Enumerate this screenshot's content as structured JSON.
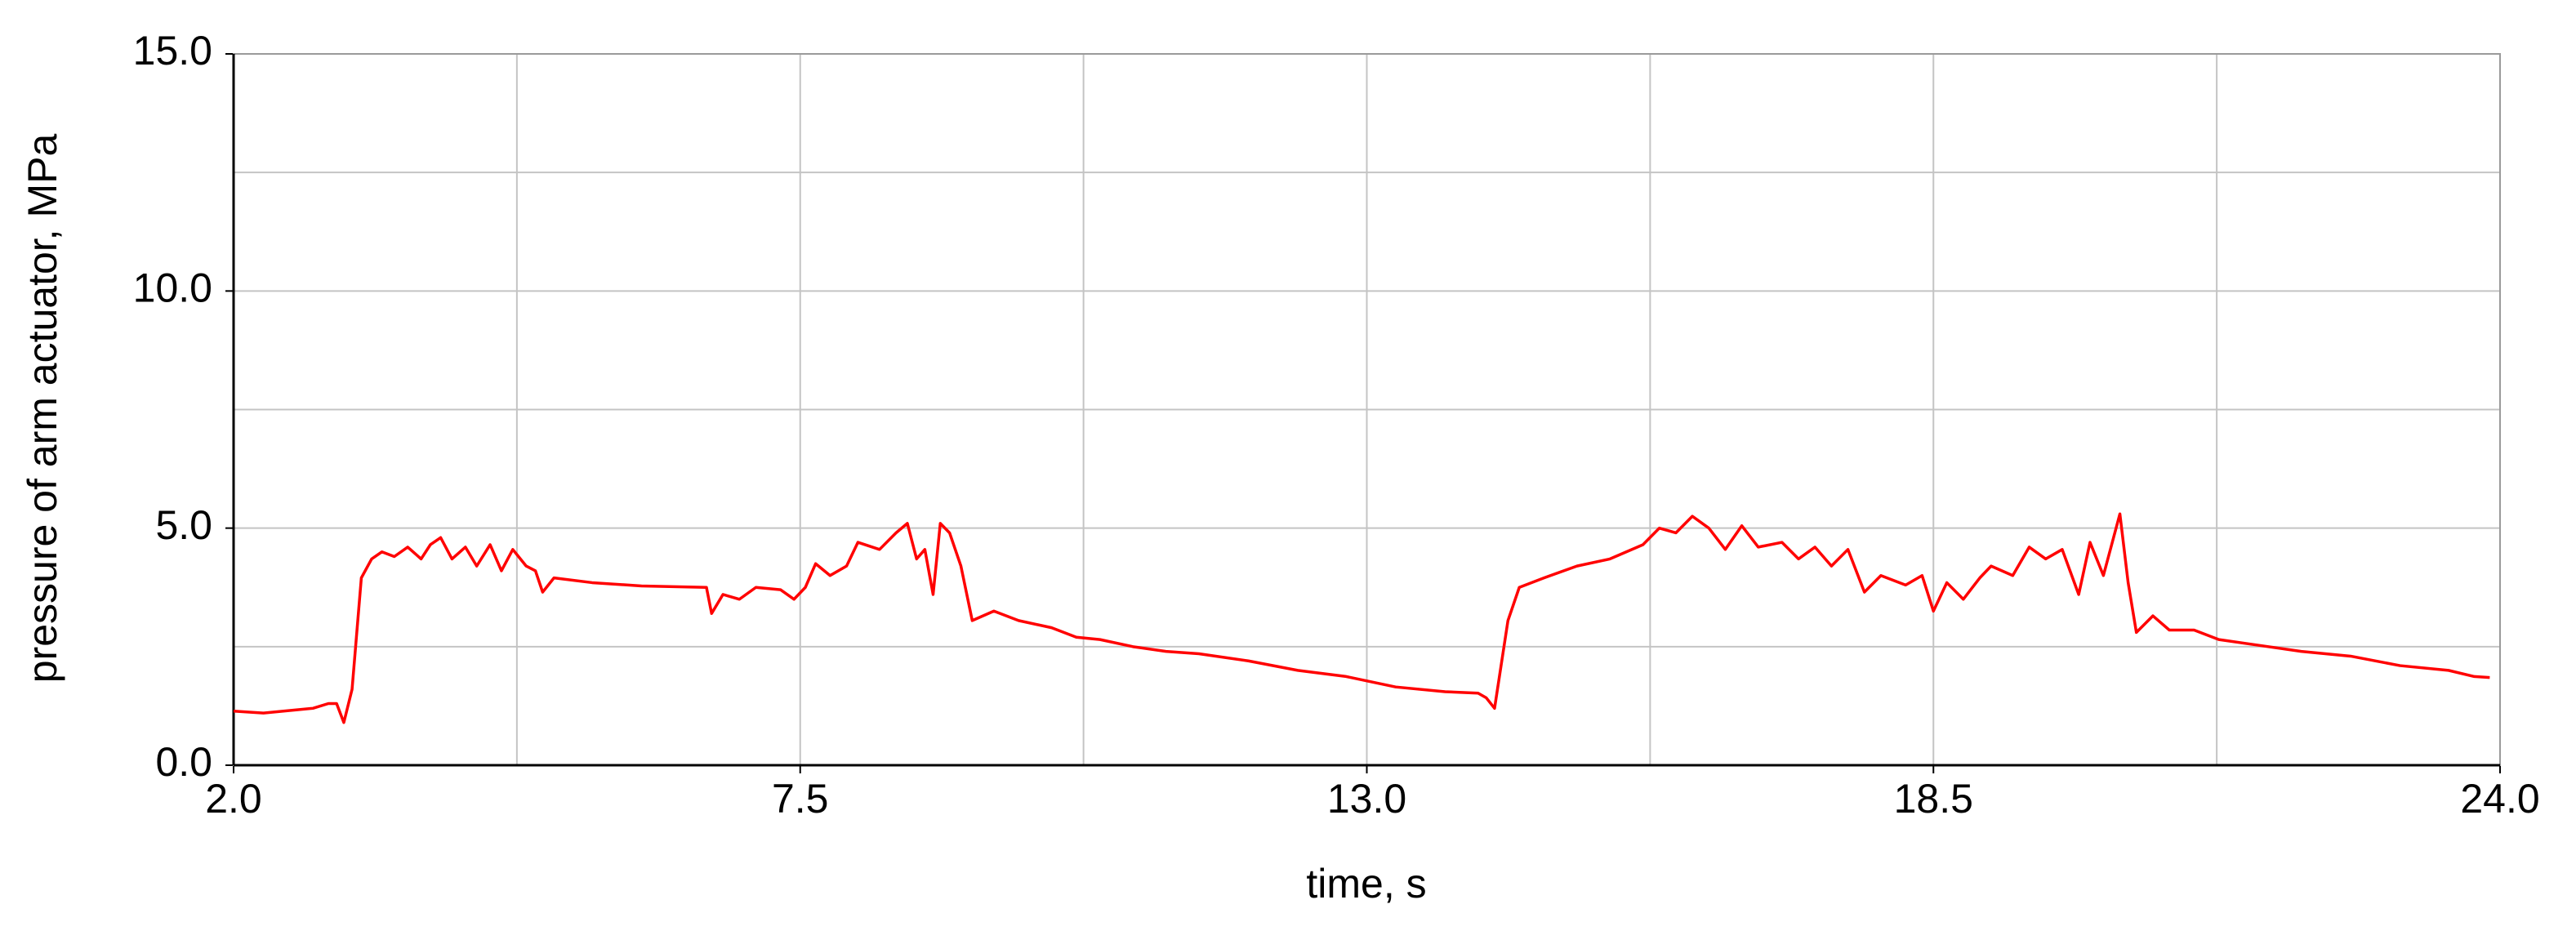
{
  "chart_data": {
    "type": "line",
    "x_label": "time, s",
    "y_label": "pressure of arm actuator, MPa",
    "xlim": [
      2.0,
      24.0
    ],
    "ylim": [
      0.0,
      15.0
    ],
    "xticks": [
      {
        "value": 2,
        "label": "2.0"
      },
      7.5,
      {
        "value": 13,
        "label": "13.0"
      },
      18.5,
      {
        "value": 24,
        "label": "24.0"
      }
    ],
    "yticks": [
      {
        "value": 0,
        "label": "0.0"
      },
      {
        "value": 5,
        "label": "5.0"
      },
      {
        "value": 10,
        "label": "10.0"
      },
      {
        "value": 15,
        "label": "15.0"
      }
    ],
    "minor_xticks": [
      4.75,
      10.25,
      15.75,
      21.25
    ],
    "minor_yticks": [
      2.5,
      7.5,
      12.5
    ],
    "grid": true,
    "color": "#ff0000",
    "x": [
      2.0,
      2.29,
      2.77,
      2.92,
      3.0,
      3.07,
      3.15,
      3.24,
      3.34,
      3.44,
      3.56,
      3.69,
      3.82,
      3.91,
      4.01,
      4.12,
      4.25,
      4.36,
      4.49,
      4.6,
      4.71,
      4.84,
      4.93,
      5.0,
      5.11,
      5.48,
      5.96,
      6.59,
      6.64,
      6.75,
      6.91,
      7.07,
      7.31,
      7.44,
      7.55,
      7.65,
      7.79,
      7.95,
      8.06,
      8.27,
      8.43,
      8.54,
      8.63,
      8.71,
      8.79,
      8.86,
      8.95,
      9.06,
      9.17,
      9.38,
      9.62,
      9.94,
      10.18,
      10.41,
      10.73,
      11.05,
      11.37,
      11.85,
      12.33,
      12.8,
      13.28,
      13.76,
      14.08,
      14.16,
      14.24,
      14.37,
      14.48,
      14.72,
      15.04,
      15.36,
      15.68,
      15.84,
      16.0,
      16.16,
      16.32,
      16.48,
      16.64,
      16.8,
      17.03,
      17.19,
      17.35,
      17.51,
      17.67,
      17.83,
      17.99,
      18.23,
      18.39,
      18.5,
      18.63,
      18.79,
      18.95,
      19.06,
      19.27,
      19.43,
      19.59,
      19.75,
      19.91,
      20.02,
      20.15,
      20.31,
      20.39,
      20.47,
      20.63,
      20.79,
      21.03,
      21.27,
      21.59,
      22.07,
      22.55,
      23.03,
      23.5,
      23.75,
      23.9
    ],
    "values": [
      1.14,
      1.1,
      1.2,
      1.3,
      1.3,
      0.9,
      1.6,
      3.95,
      4.35,
      4.5,
      4.4,
      4.6,
      4.35,
      4.65,
      4.8,
      4.35,
      4.6,
      4.2,
      4.65,
      4.1,
      4.55,
      4.2,
      4.1,
      3.65,
      3.95,
      3.85,
      3.78,
      3.75,
      3.2,
      3.6,
      3.5,
      3.75,
      3.7,
      3.5,
      3.75,
      4.25,
      4.0,
      4.2,
      4.7,
      4.55,
      4.9,
      5.1,
      4.35,
      4.55,
      3.6,
      5.1,
      4.9,
      4.2,
      3.05,
      3.25,
      3.05,
      2.9,
      2.7,
      2.65,
      2.5,
      2.4,
      2.35,
      2.2,
      2.0,
      1.87,
      1.65,
      1.55,
      1.52,
      1.42,
      1.2,
      3.05,
      3.75,
      3.95,
      4.2,
      4.35,
      4.65,
      5.0,
      4.9,
      5.25,
      5.0,
      4.55,
      5.05,
      4.6,
      4.7,
      4.35,
      4.6,
      4.2,
      4.55,
      3.65,
      4.0,
      3.8,
      4.0,
      3.25,
      3.85,
      3.5,
      3.95,
      4.2,
      4.0,
      4.6,
      4.35,
      4.55,
      3.6,
      4.7,
      4.0,
      5.3,
      3.85,
      2.8,
      3.15,
      2.85,
      2.85,
      2.65,
      2.55,
      2.4,
      2.3,
      2.1,
      2.0,
      1.87,
      1.85
    ]
  }
}
